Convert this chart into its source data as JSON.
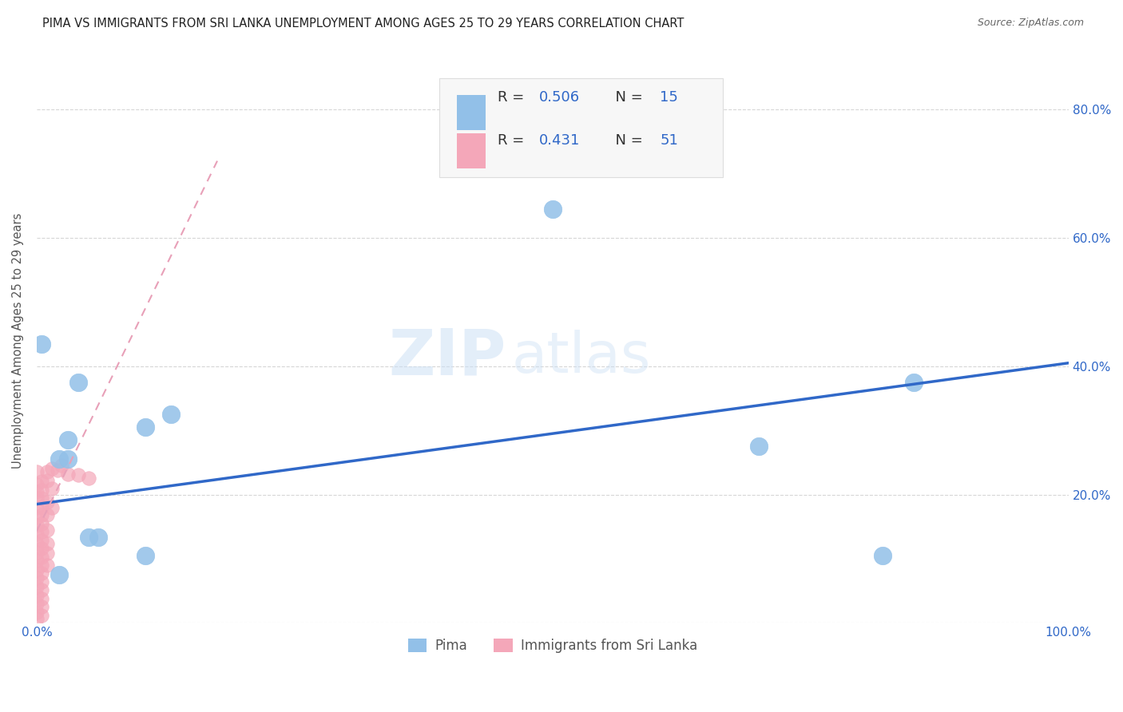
{
  "title": "PIMA VS IMMIGRANTS FROM SRI LANKA UNEMPLOYMENT AMONG AGES 25 TO 29 YEARS CORRELATION CHART",
  "source": "Source: ZipAtlas.com",
  "ylabel": "Unemployment Among Ages 25 to 29 years",
  "xlim": [
    0,
    1.0
  ],
  "ylim": [
    0,
    0.88
  ],
  "yticks": [
    0.0,
    0.2,
    0.4,
    0.6,
    0.8
  ],
  "yticklabels_right": [
    "",
    "20.0%",
    "40.0%",
    "60.0%",
    "80.0%"
  ],
  "xtick_positions": [
    0.0,
    1.0
  ],
  "xticklabels": [
    "0.0%",
    "100.0%"
  ],
  "pima_color": "#92c0e8",
  "srilanka_color": "#f4a7b9",
  "pima_line_color": "#3068c8",
  "srilanka_line_color": "#e8a0b8",
  "pima_R": "0.506",
  "pima_N": "15",
  "srilanka_R": "0.431",
  "srilanka_N": "51",
  "watermark_zip": "ZIP",
  "watermark_atlas": "atlas",
  "pima_scatter": [
    [
      0.005,
      0.435
    ],
    [
      0.022,
      0.255
    ],
    [
      0.03,
      0.285
    ],
    [
      0.04,
      0.375
    ],
    [
      0.03,
      0.255
    ],
    [
      0.06,
      0.133
    ],
    [
      0.05,
      0.133
    ],
    [
      0.105,
      0.305
    ],
    [
      0.13,
      0.325
    ],
    [
      0.5,
      0.645
    ],
    [
      0.7,
      0.275
    ],
    [
      0.82,
      0.105
    ],
    [
      0.85,
      0.375
    ],
    [
      0.022,
      0.075
    ],
    [
      0.105,
      0.105
    ]
  ],
  "srilanka_scatter": [
    [
      0.0,
      0.235
    ],
    [
      0.0,
      0.215
    ],
    [
      0.0,
      0.205
    ],
    [
      0.0,
      0.195
    ],
    [
      0.0,
      0.18
    ],
    [
      0.0,
      0.165
    ],
    [
      0.0,
      0.152
    ],
    [
      0.0,
      0.138
    ],
    [
      0.0,
      0.124
    ],
    [
      0.0,
      0.11
    ],
    [
      0.0,
      0.097
    ],
    [
      0.0,
      0.083
    ],
    [
      0.0,
      0.07
    ],
    [
      0.0,
      0.056
    ],
    [
      0.0,
      0.043
    ],
    [
      0.0,
      0.03
    ],
    [
      0.0,
      0.016
    ],
    [
      0.0,
      0.006
    ],
    [
      0.005,
      0.22
    ],
    [
      0.005,
      0.207
    ],
    [
      0.005,
      0.194
    ],
    [
      0.005,
      0.181
    ],
    [
      0.005,
      0.168
    ],
    [
      0.005,
      0.155
    ],
    [
      0.005,
      0.142
    ],
    [
      0.005,
      0.129
    ],
    [
      0.005,
      0.116
    ],
    [
      0.005,
      0.103
    ],
    [
      0.005,
      0.09
    ],
    [
      0.005,
      0.077
    ],
    [
      0.005,
      0.064
    ],
    [
      0.005,
      0.051
    ],
    [
      0.005,
      0.038
    ],
    [
      0.005,
      0.025
    ],
    [
      0.005,
      0.012
    ],
    [
      0.01,
      0.235
    ],
    [
      0.01,
      0.222
    ],
    [
      0.01,
      0.188
    ],
    [
      0.01,
      0.168
    ],
    [
      0.01,
      0.145
    ],
    [
      0.01,
      0.124
    ],
    [
      0.01,
      0.108
    ],
    [
      0.01,
      0.09
    ],
    [
      0.015,
      0.24
    ],
    [
      0.015,
      0.21
    ],
    [
      0.015,
      0.18
    ],
    [
      0.02,
      0.238
    ],
    [
      0.024,
      0.245
    ],
    [
      0.03,
      0.232
    ],
    [
      0.04,
      0.23
    ],
    [
      0.05,
      0.225
    ]
  ],
  "pima_trend_x": [
    0.0,
    1.0
  ],
  "pima_trend_y": [
    0.185,
    0.405
  ],
  "srilanka_trend_x": [
    0.0,
    0.175
  ],
  "srilanka_trend_y": [
    0.143,
    0.72
  ]
}
